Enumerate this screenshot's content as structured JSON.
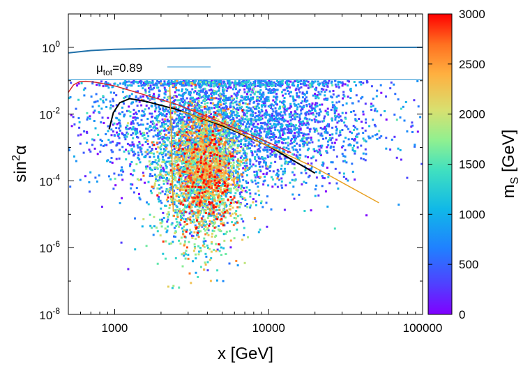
{
  "chart_data": {
    "type": "scatter",
    "title": "",
    "xlabel": "x [GeV]",
    "ylabel_base": "sin",
    "ylabel_sup": "2",
    "ylabel_tail": "α",
    "xscale": "log",
    "yscale": "log",
    "xlim": [
      500,
      100000
    ],
    "ylim_exp": [
      -8,
      1
    ],
    "x_ticks": [
      {
        "value": 1000,
        "label": "1000"
      },
      {
        "value": 10000,
        "label": "10000"
      },
      {
        "value": 100000,
        "label": "100000"
      }
    ],
    "y_ticks": [
      {
        "exp": 0,
        "base": "10",
        "sup": "0"
      },
      {
        "exp": -2,
        "base": "10",
        "sup": "-2"
      },
      {
        "exp": -4,
        "base": "10",
        "sup": "-4"
      },
      {
        "exp": -6,
        "base": "10",
        "sup": "-6"
      },
      {
        "exp": -8,
        "base": "10",
        "sup": "-8"
      }
    ],
    "colorbar": {
      "label_base": "m",
      "label_sub": "S",
      "label_tail": " [GeV]",
      "range": [
        0,
        3000
      ],
      "ticks": [
        {
          "value": 0,
          "label": "0"
        },
        {
          "value": 500,
          "label": "500"
        },
        {
          "value": 1000,
          "label": "1000"
        },
        {
          "value": 1500,
          "label": "1500"
        },
        {
          "value": 2000,
          "label": "2000"
        },
        {
          "value": 2500,
          "label": "2500"
        },
        {
          "value": 3000,
          "label": "3000"
        }
      ]
    },
    "legend": {
      "position": "top-left",
      "label_base": "μ",
      "label_sub": "tot",
      "label_tail": "=0.89",
      "color": "#1f8fd0"
    },
    "scatter": {
      "count": 6500,
      "color_variable": "m_S [GeV]",
      "clusters": [
        {
          "name": "broad",
          "weight": 0.55,
          "logx_mean": 3.75,
          "logx_sd": 0.45,
          "logy_mean": -2.2,
          "logy_sd": 1.0,
          "mass_mean": 600,
          "mass_sd": 400
        },
        {
          "name": "central",
          "weight": 0.3,
          "logx_mean": 3.55,
          "logx_sd": 0.15,
          "logy_mean": -3.8,
          "logy_sd": 1.1,
          "mass_mean": 1400,
          "mass_sd": 700
        },
        {
          "name": "core-heavy",
          "weight": 0.15,
          "logx_mean": 3.6,
          "logx_sd": 0.1,
          "logy_mean": -3.6,
          "logy_sd": 0.9,
          "mass_mean": 2300,
          "mass_sd": 500
        }
      ],
      "max_log_sin2": -1,
      "min_log_sin2": -8
    },
    "lines": [
      {
        "name": "mu-tot-contour-upper",
        "color": "#1f6fa8",
        "width": 2,
        "points": [
          [
            500,
            0.68
          ],
          [
            700,
            0.8
          ],
          [
            1000,
            0.87
          ],
          [
            2000,
            0.93
          ],
          [
            5000,
            0.97
          ],
          [
            20000,
            0.99
          ],
          [
            100000,
            1.0
          ]
        ]
      },
      {
        "name": "mu-tot-contour-lower",
        "color": "#1f8fd0",
        "width": 1,
        "points": [
          [
            500,
            0.107
          ],
          [
            100000,
            0.107
          ]
        ]
      },
      {
        "name": "red-limit",
        "color": "#d62728",
        "width": 1.5,
        "points": [
          [
            500,
            0.045
          ],
          [
            540,
            0.075
          ],
          [
            590,
            0.094
          ],
          [
            650,
            0.096
          ],
          [
            750,
            0.09
          ],
          [
            1000,
            0.07
          ],
          [
            1500,
            0.04
          ],
          [
            2500,
            0.02
          ],
          [
            5000,
            0.0055
          ],
          [
            10000,
            0.0014
          ],
          [
            14000,
            0.0007
          ]
        ]
      },
      {
        "name": "black-limit",
        "color": "#000000",
        "width": 2,
        "points": [
          [
            920,
            0.0035
          ],
          [
            980,
            0.011
          ],
          [
            1080,
            0.022
          ],
          [
            1250,
            0.029
          ],
          [
            1600,
            0.024
          ],
          [
            2500,
            0.014
          ],
          [
            5000,
            0.0045
          ],
          [
            10000,
            0.0011
          ],
          [
            20000,
            0.00017
          ]
        ]
      },
      {
        "name": "orange-vertical",
        "color": "#e8a020",
        "width": 1.5,
        "points": [
          [
            2280,
            0.065
          ],
          [
            2340,
            0.0016
          ],
          [
            2400,
            1.2e-05
          ]
        ]
      },
      {
        "name": "orange-limit",
        "color": "#e8a020",
        "width": 1.5,
        "points": [
          [
            2700,
            0.012
          ],
          [
            5000,
            0.0048
          ],
          [
            10000,
            0.0011
          ],
          [
            20000,
            0.00025
          ],
          [
            52000,
            2.2e-05
          ]
        ]
      }
    ]
  }
}
